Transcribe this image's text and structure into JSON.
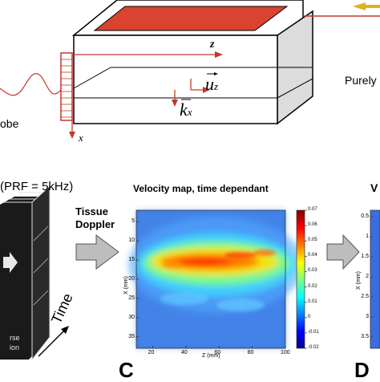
{
  "top_panel": {
    "axis_z": "z",
    "axis_x": "x",
    "vector_u": "u",
    "vector_u_sub": "z",
    "vector_k": "k",
    "vector_k_sub": "x",
    "probe_label": "obe",
    "right_label": "Purely"
  },
  "bottom_panel": {
    "prf_label": "(PRF = 5kHz)",
    "time_label": "Time",
    "stack_text_1": "rse",
    "stack_text_2": "ion",
    "arrow_label_1": "Tissue",
    "arrow_label_2": "Doppler",
    "map_title": "Velocity map, time dependant",
    "panel_c": "C",
    "panel_d": "D",
    "right_title_partial": "V"
  },
  "chart_data": {
    "type": "heatmap",
    "title": "Velocity map, time dependant",
    "xlabel": "Z (mm)",
    "ylabel": "X (mm)",
    "xlim": [
      10,
      100
    ],
    "ylim": [
      38,
      2
    ],
    "x_ticks": [
      "20",
      "40",
      "60",
      "80",
      "100"
    ],
    "y_ticks": [
      "5",
      "10",
      "15",
      "20",
      "25",
      "30",
      "35"
    ],
    "colorbar_ticks": [
      "0.07",
      "0.06",
      "0.05",
      "0.04",
      "0.03",
      "0.02",
      "0.01",
      "0",
      "-0.01",
      "-0.02"
    ],
    "colorbar_range": [
      -0.02,
      0.07
    ],
    "description_jet_peak_x": 17,
    "background_value": -0.005
  },
  "right_chart": {
    "y_ticks": [
      "0.5",
      "1",
      "1.5",
      "2",
      "2.5",
      "3",
      "3.5"
    ],
    "ylabel": "X (mm)"
  }
}
